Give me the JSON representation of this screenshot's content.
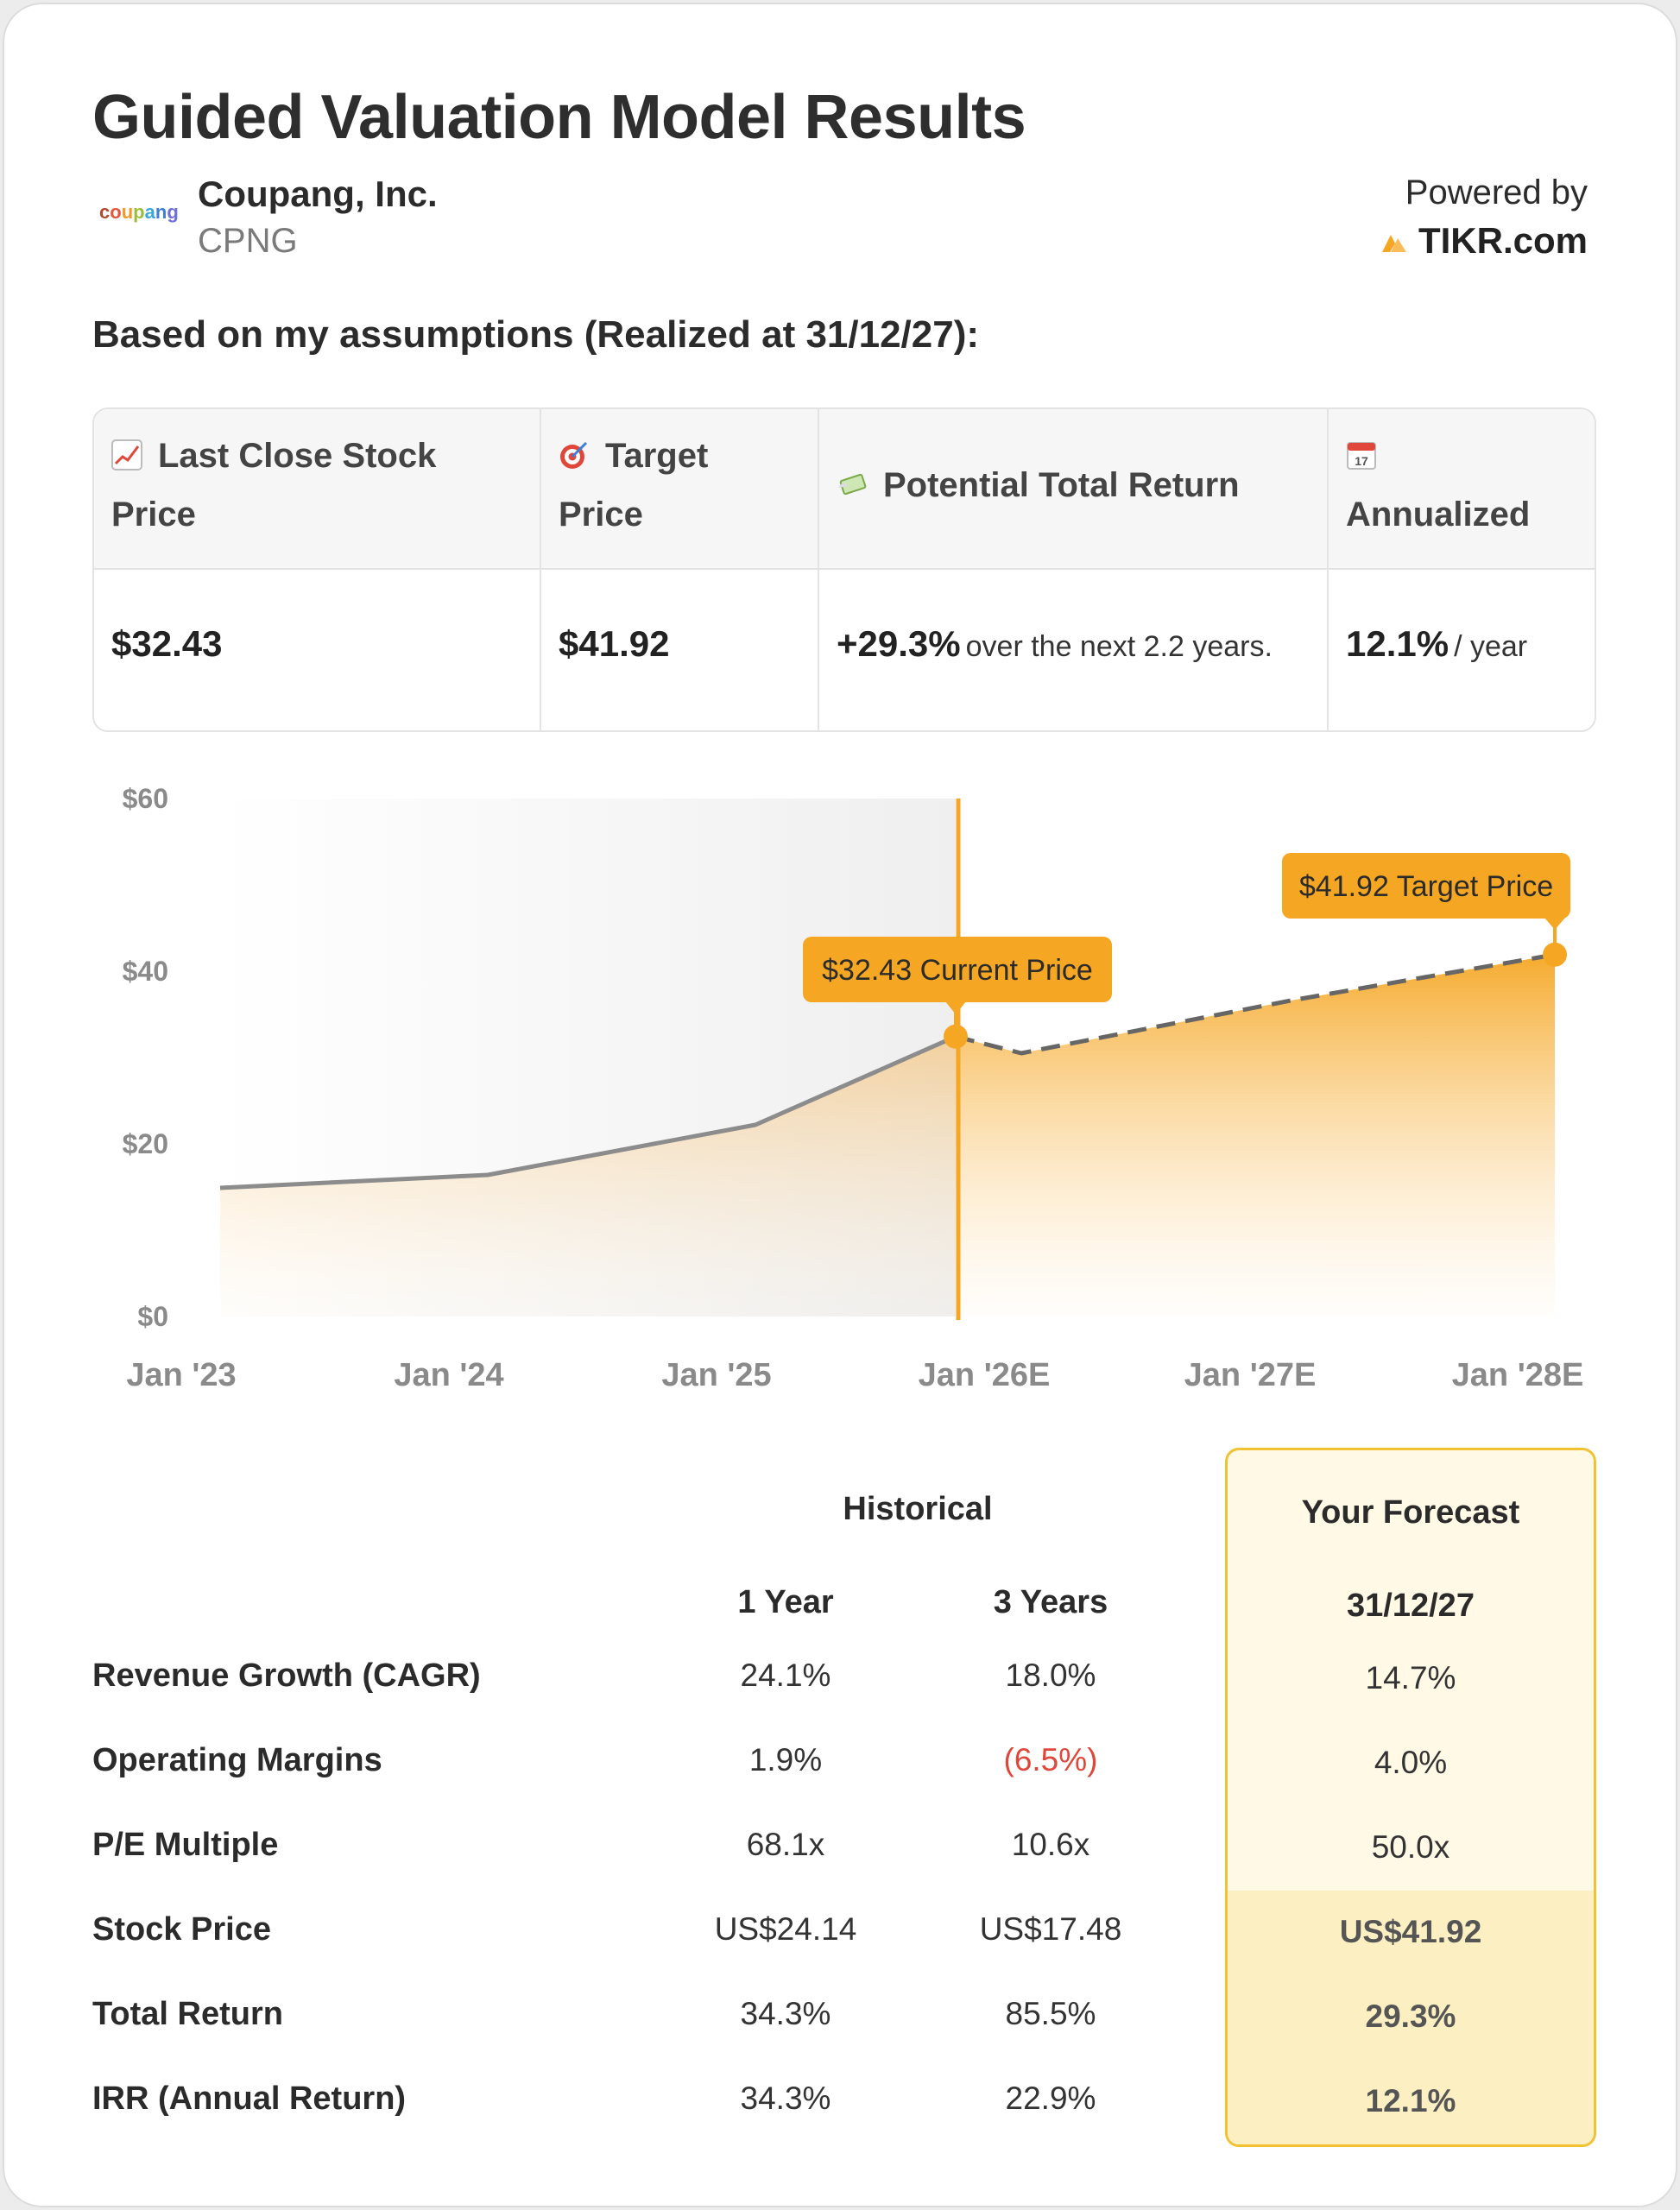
{
  "header": {
    "title": "Guided Valuation Model Results",
    "company_name": "Coupang, Inc.",
    "ticker": "CPNG",
    "logo_text": "coupang",
    "powered_by": "Powered by",
    "brand": "TIKR.com"
  },
  "assumptions_text": "Based on my assumptions (Realized at 31/12/27):",
  "summary": {
    "last_close_label_1": "Last Close Stock",
    "last_close_label_2": "Price",
    "last_close_icon": "chart-increasing-icon",
    "target_label_1": "Target",
    "target_label_2": "Price",
    "target_icon": "target-icon",
    "return_label": "Potential Total Return",
    "return_icon": "money-with-wings-icon",
    "annualized_label": "Annualized",
    "annualized_icon": "calendar-icon",
    "calendar_day": "17",
    "last_close_value": "$32.43",
    "target_value": "$41.92",
    "return_value": "+29.3%",
    "return_sub": "over the next 2.2 years.",
    "annualized_value": "12.1%",
    "annualized_sub": "/ year"
  },
  "chart_data": {
    "type": "area",
    "x": [
      "Jan '23",
      "Jan '24",
      "Jan '25",
      "Jan '26E",
      "Jan '27E",
      "Jan '28E"
    ],
    "historical": [
      {
        "x": "Jan '23",
        "y": 14.9
      },
      {
        "x": "Jan '24",
        "y": 16.4
      },
      {
        "x": "Jan '25",
        "y": 22.2
      },
      {
        "x": "Jan '26E",
        "y": 32.43
      }
    ],
    "forecast": [
      {
        "x": "Jan '26E",
        "y": 32.43
      },
      {
        "x": "Jan '26E+",
        "y": 30.5
      },
      {
        "x": "Jan '27E",
        "y": 36.6
      },
      {
        "x": "Jan '28E",
        "y": 41.92
      }
    ],
    "y_ticks": [
      "$60",
      "$40",
      "$20",
      "$0"
    ],
    "ylim": [
      0,
      60
    ],
    "current_label": "$32.43 Current Price",
    "target_label": "$41.92 Target Price",
    "colors": {
      "accent": "#f5a623",
      "line": "#8c8c8c",
      "dash": "#666666"
    }
  },
  "metrics": {
    "historical_label": "Historical",
    "forecast_label": "Your Forecast",
    "col_1y": "1 Year",
    "col_3y": "3 Years",
    "col_fc": "31/12/27",
    "rows": [
      {
        "label": "Revenue Growth (CAGR)",
        "y1": "24.1%",
        "y3": "18.0%",
        "fc": "14.7%"
      },
      {
        "label": "Operating Margins",
        "y1": "1.9%",
        "y3": "(6.5%)",
        "fc": "4.0%"
      },
      {
        "label": "P/E Multiple",
        "y1": "68.1x",
        "y3": "10.6x",
        "fc": "50.0x"
      },
      {
        "label": "Stock Price",
        "y1": "US$24.14",
        "y3": "US$17.48",
        "fc": "US$41.92"
      },
      {
        "label": "Total Return",
        "y1": "34.3%",
        "y3": "85.5%",
        "fc": "29.3%"
      },
      {
        "label": "IRR (Annual Return)",
        "y1": "34.3%",
        "y3": "22.9%",
        "fc": "12.1%"
      }
    ]
  }
}
